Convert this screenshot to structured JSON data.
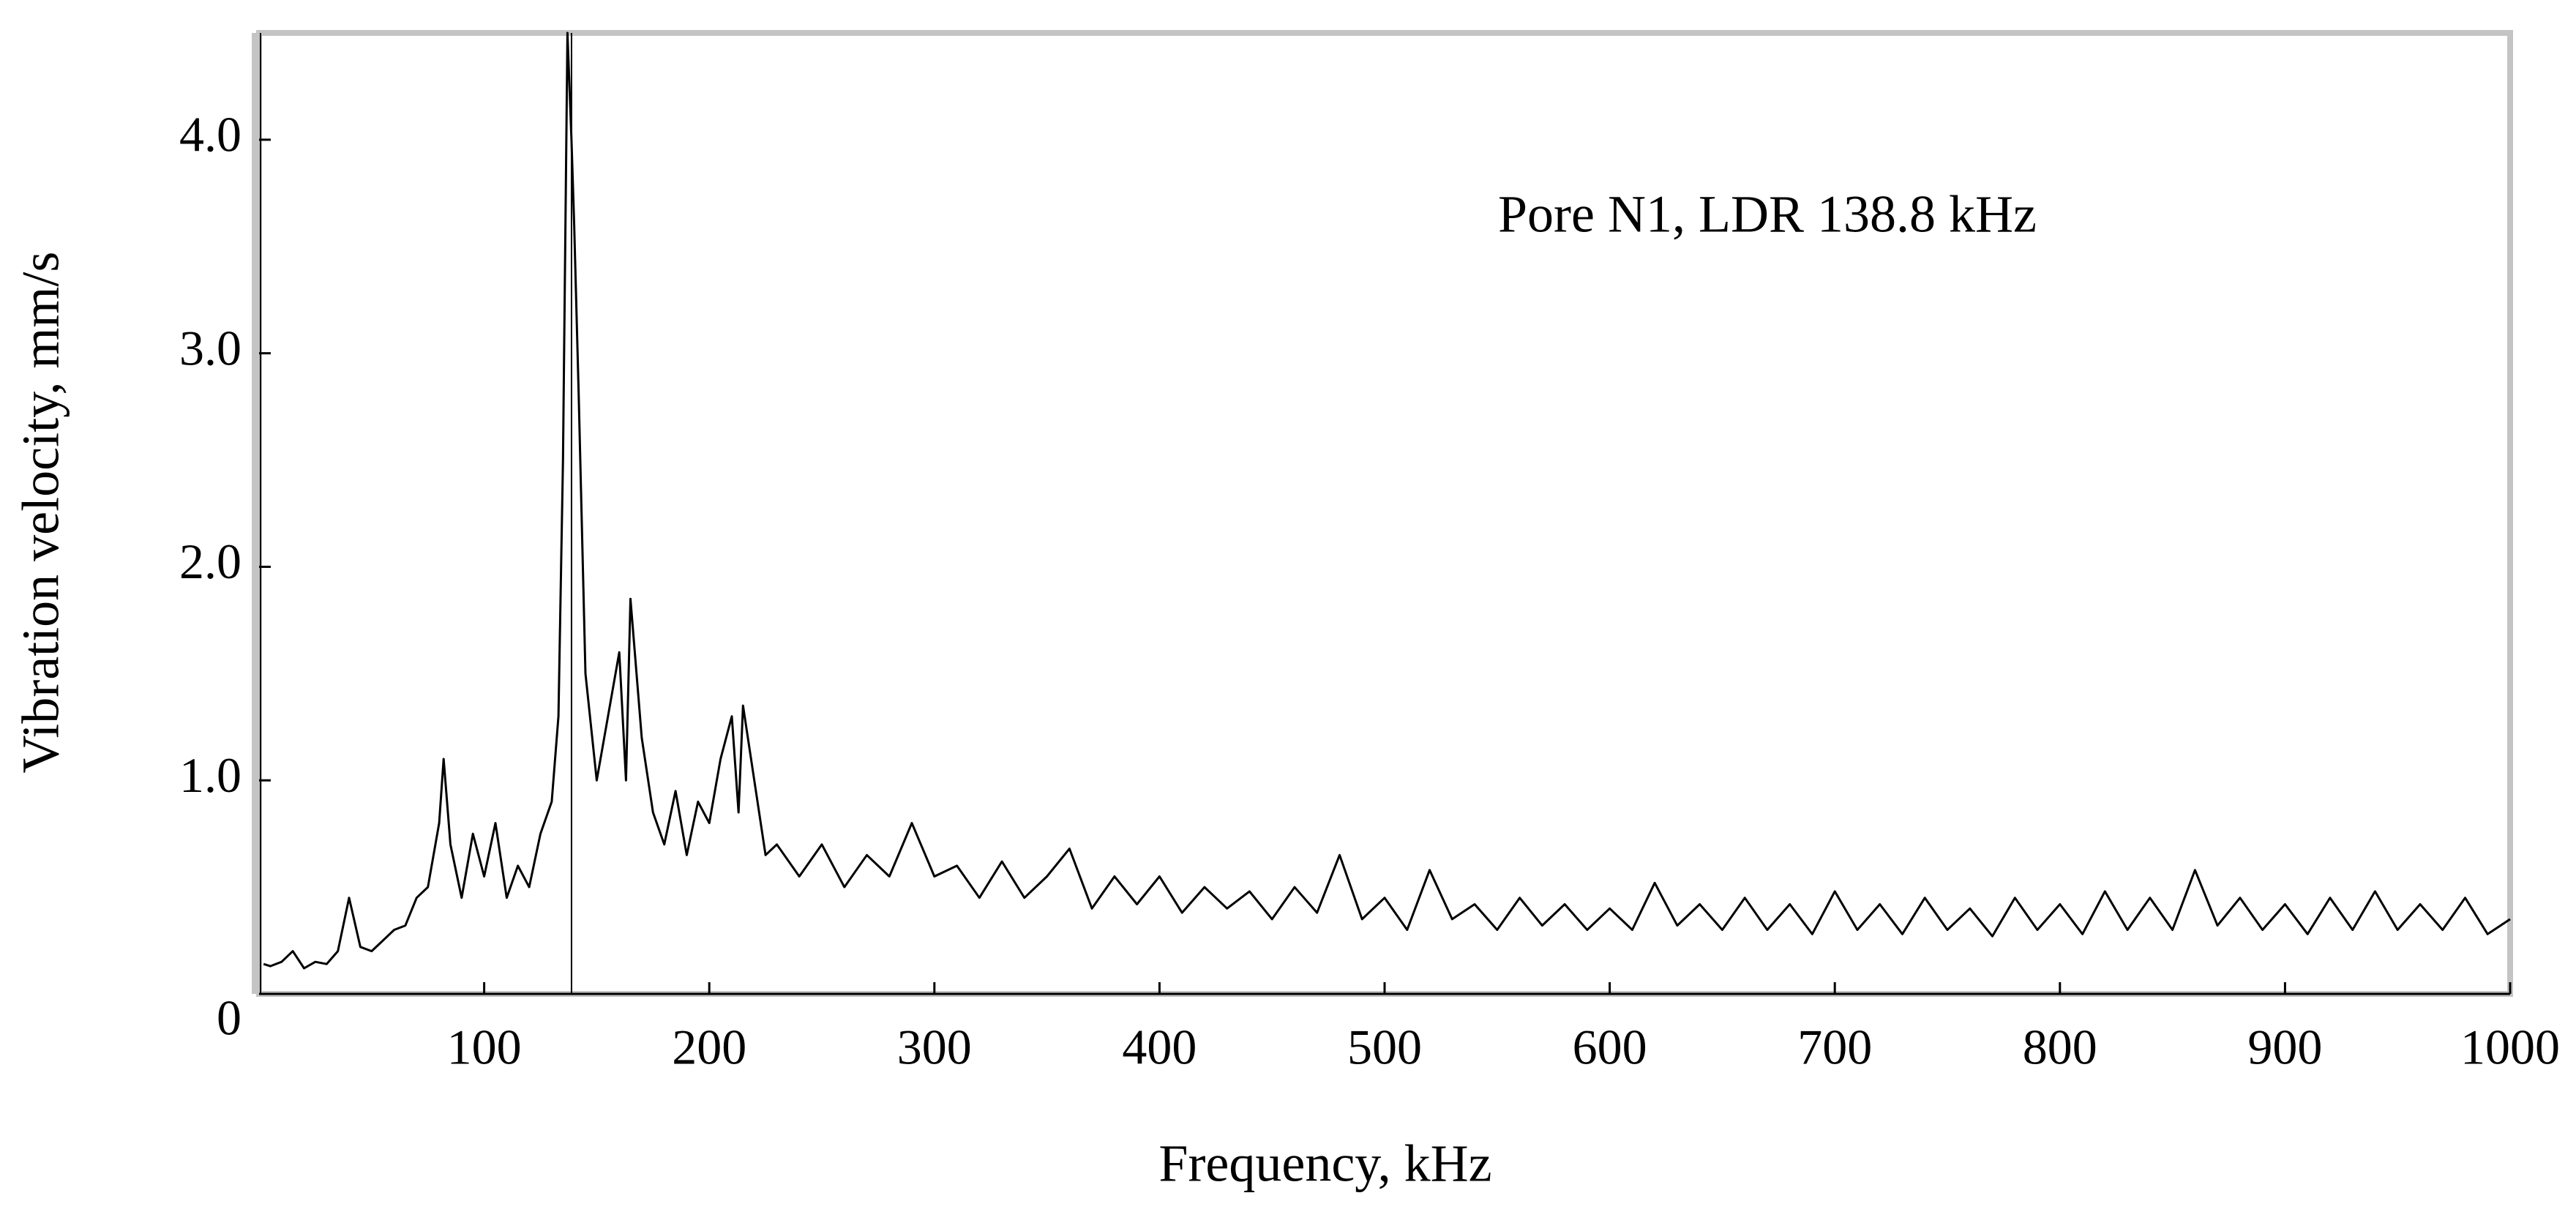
{
  "chart_data": {
    "type": "line",
    "annotation": "Pore N1, LDR 138.8 kHz",
    "xlabel": "Frequency, kHz",
    "ylabel": "Vibration velocity, mm/s",
    "color": "#000000",
    "vline_x": 138.8,
    "x": [
      2,
      5,
      10,
      15,
      20,
      25,
      30,
      35,
      40,
      45,
      50,
      55,
      60,
      65,
      70,
      75,
      80,
      82,
      85,
      90,
      95,
      100,
      105,
      110,
      115,
      120,
      125,
      130,
      133,
      135,
      137,
      138.8,
      140,
      142,
      145,
      150,
      155,
      160,
      163,
      165,
      170,
      175,
      180,
      185,
      190,
      195,
      200,
      205,
      210,
      213,
      215,
      220,
      225,
      230,
      240,
      250,
      260,
      270,
      280,
      290,
      300,
      310,
      320,
      330,
      340,
      350,
      360,
      370,
      380,
      390,
      400,
      410,
      420,
      430,
      440,
      450,
      460,
      470,
      480,
      490,
      500,
      510,
      520,
      530,
      540,
      550,
      560,
      570,
      580,
      590,
      600,
      610,
      620,
      630,
      640,
      650,
      660,
      670,
      680,
      690,
      700,
      710,
      720,
      730,
      740,
      750,
      760,
      770,
      780,
      790,
      800,
      810,
      820,
      830,
      840,
      850,
      860,
      870,
      880,
      890,
      900,
      910,
      920,
      930,
      940,
      950,
      960,
      970,
      980,
      990,
      1000
    ],
    "values": [
      0.14,
      0.13,
      0.15,
      0.2,
      0.12,
      0.15,
      0.14,
      0.2,
      0.45,
      0.22,
      0.2,
      0.25,
      0.3,
      0.32,
      0.45,
      0.5,
      0.8,
      1.1,
      0.7,
      0.45,
      0.75,
      0.55,
      0.8,
      0.45,
      0.6,
      0.5,
      0.75,
      0.9,
      1.3,
      2.5,
      4.5,
      4.0,
      3.6,
      2.8,
      1.5,
      1.0,
      1.3,
      1.6,
      1.0,
      1.85,
      1.2,
      0.85,
      0.7,
      0.95,
      0.65,
      0.9,
      0.8,
      1.1,
      1.3,
      0.85,
      1.35,
      1.0,
      0.65,
      0.7,
      0.55,
      0.7,
      0.5,
      0.65,
      0.55,
      0.8,
      0.55,
      0.6,
      0.45,
      0.62,
      0.45,
      0.55,
      0.68,
      0.4,
      0.55,
      0.42,
      0.55,
      0.38,
      0.5,
      0.4,
      0.48,
      0.35,
      0.5,
      0.38,
      0.65,
      0.35,
      0.45,
      0.3,
      0.58,
      0.35,
      0.42,
      0.3,
      0.45,
      0.32,
      0.42,
      0.3,
      0.4,
      0.3,
      0.52,
      0.32,
      0.42,
      0.3,
      0.45,
      0.3,
      0.42,
      0.28,
      0.48,
      0.3,
      0.42,
      0.28,
      0.45,
      0.3,
      0.4,
      0.27,
      0.45,
      0.3,
      0.42,
      0.28,
      0.48,
      0.3,
      0.45,
      0.3,
      0.58,
      0.32,
      0.45,
      0.3,
      0.42,
      0.28,
      0.45,
      0.3,
      0.48,
      0.3,
      0.42,
      0.3,
      0.45,
      0.28,
      0.35
    ],
    "xlim": [
      0,
      1000
    ],
    "xticks": [
      100,
      200,
      300,
      400,
      500,
      600,
      700,
      800,
      900,
      1000
    ],
    "ylim": [
      0,
      4.5
    ],
    "yticks": [
      0,
      {
        "value": 1,
        "label": "1.0"
      },
      {
        "value": 2,
        "label": "2.0"
      },
      {
        "value": 3,
        "label": "3.0"
      },
      {
        "value": 4,
        "label": "4.0"
      }
    ]
  }
}
